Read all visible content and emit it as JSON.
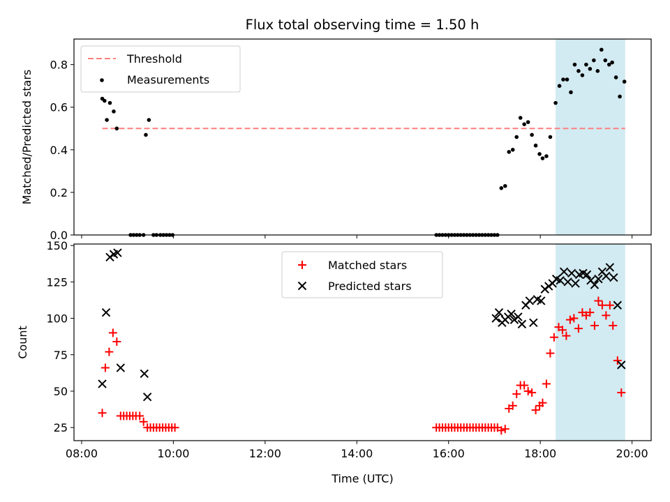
{
  "title": "Flux total observing time = 1.50 h",
  "colors": {
    "measurement": "#000000",
    "threshold": "#ff7f7f",
    "matched": "#ff0000",
    "predicted": "#000000",
    "shade": "#add8e6"
  },
  "chart_data": [
    {
      "type": "scatter",
      "ylabel": "Matched/Predicted stars",
      "ylim": [
        0,
        0.92
      ],
      "xlim": [
        "07:50",
        "20:25"
      ],
      "yticks": [
        0.0,
        0.2,
        0.4,
        0.6,
        0.8
      ],
      "ytick_labels": [
        "0.0",
        "0.2",
        "0.4",
        "0.6",
        "0.8"
      ],
      "legend": {
        "position": "upper left",
        "entries": [
          "Threshold",
          "Measurements"
        ]
      },
      "shaded_region": [
        "18:20",
        "19:51"
      ],
      "threshold": {
        "name": "Threshold",
        "y": 0.5,
        "x_range": [
          "08:27",
          "19:51"
        ]
      },
      "series": [
        {
          "name": "Measurements",
          "points": [
            [
              "08:27",
              0.64
            ],
            [
              "08:30",
              0.63
            ],
            [
              "08:33",
              0.54
            ],
            [
              "08:37",
              0.62
            ],
            [
              "08:42",
              0.58
            ],
            [
              "08:46",
              0.5
            ],
            [
              "09:04",
              0.0
            ],
            [
              "09:08",
              0.0
            ],
            [
              "09:12",
              0.0
            ],
            [
              "09:16",
              0.0
            ],
            [
              "09:21",
              0.0
            ],
            [
              "09:24",
              0.47
            ],
            [
              "09:28",
              0.54
            ],
            [
              "09:34",
              0.0
            ],
            [
              "09:38",
              0.0
            ],
            [
              "09:43",
              0.0
            ],
            [
              "09:47",
              0.0
            ],
            [
              "09:51",
              0.0
            ],
            [
              "09:55",
              0.0
            ],
            [
              "09:59",
              0.0
            ],
            [
              "15:44",
              0.0
            ],
            [
              "15:48",
              0.0
            ],
            [
              "15:52",
              0.0
            ],
            [
              "15:56",
              0.0
            ],
            [
              "16:00",
              0.0
            ],
            [
              "16:04",
              0.0
            ],
            [
              "16:08",
              0.0
            ],
            [
              "16:12",
              0.0
            ],
            [
              "16:16",
              0.0
            ],
            [
              "16:20",
              0.0
            ],
            [
              "16:24",
              0.0
            ],
            [
              "16:28",
              0.0
            ],
            [
              "16:32",
              0.0
            ],
            [
              "16:36",
              0.0
            ],
            [
              "16:40",
              0.0
            ],
            [
              "16:44",
              0.0
            ],
            [
              "16:48",
              0.0
            ],
            [
              "16:52",
              0.0
            ],
            [
              "16:56",
              0.0
            ],
            [
              "17:00",
              0.0
            ],
            [
              "17:04",
              0.0
            ],
            [
              "17:09",
              0.22
            ],
            [
              "17:14",
              0.23
            ],
            [
              "17:19",
              0.39
            ],
            [
              "17:24",
              0.4
            ],
            [
              "17:29",
              0.46
            ],
            [
              "17:34",
              0.55
            ],
            [
              "17:39",
              0.52
            ],
            [
              "17:44",
              0.53
            ],
            [
              "17:49",
              0.47
            ],
            [
              "17:54",
              0.42
            ],
            [
              "17:59",
              0.38
            ],
            [
              "18:03",
              0.36
            ],
            [
              "18:08",
              0.37
            ],
            [
              "18:13",
              0.46
            ],
            [
              "18:20",
              0.62
            ],
            [
              "18:25",
              0.7
            ],
            [
              "18:30",
              0.73
            ],
            [
              "18:35",
              0.73
            ],
            [
              "18:40",
              0.67
            ],
            [
              "18:45",
              0.8
            ],
            [
              "18:50",
              0.77
            ],
            [
              "18:55",
              0.75
            ],
            [
              "19:00",
              0.8
            ],
            [
              "19:05",
              0.78
            ],
            [
              "19:10",
              0.82
            ],
            [
              "19:15",
              0.77
            ],
            [
              "19:20",
              0.87
            ],
            [
              "19:25",
              0.82
            ],
            [
              "19:30",
              0.8
            ],
            [
              "19:34",
              0.81
            ],
            [
              "19:39",
              0.74
            ],
            [
              "19:44",
              0.65
            ],
            [
              "19:50",
              0.72
            ]
          ]
        }
      ]
    },
    {
      "type": "scatter",
      "xlabel": "Time (UTC)",
      "ylabel": "Count",
      "ylim": [
        16,
        151
      ],
      "xlim": [
        "07:50",
        "20:25"
      ],
      "xticks": [
        "08:00",
        "10:00",
        "12:00",
        "14:00",
        "16:00",
        "18:00",
        "20:00"
      ],
      "yticks": [
        25,
        50,
        75,
        100,
        125,
        150
      ],
      "ytick_labels": [
        "25",
        "50",
        "75",
        "100",
        "125",
        "150"
      ],
      "legend": {
        "position": "upper center",
        "entries": [
          "Matched stars",
          "Predicted stars"
        ]
      },
      "shaded_region": [
        "18:20",
        "19:51"
      ],
      "series": [
        {
          "name": "Matched stars",
          "marker": "+",
          "points": [
            [
              "08:27",
              35
            ],
            [
              "08:31",
              66
            ],
            [
              "08:36",
              77
            ],
            [
              "08:41",
              90
            ],
            [
              "08:46",
              84
            ],
            [
              "08:51",
              33
            ],
            [
              "08:55",
              33
            ],
            [
              "08:59",
              33
            ],
            [
              "09:03",
              33
            ],
            [
              "09:07",
              33
            ],
            [
              "09:11",
              33
            ],
            [
              "09:16",
              33
            ],
            [
              "09:21",
              29
            ],
            [
              "09:26",
              25
            ],
            [
              "09:30",
              25
            ],
            [
              "09:34",
              25
            ],
            [
              "09:38",
              25
            ],
            [
              "09:42",
              25
            ],
            [
              "09:46",
              25
            ],
            [
              "09:50",
              25
            ],
            [
              "09:54",
              25
            ],
            [
              "09:58",
              25
            ],
            [
              "10:02",
              25
            ],
            [
              "15:44",
              25
            ],
            [
              "15:48",
              25
            ],
            [
              "15:52",
              25
            ],
            [
              "15:56",
              25
            ],
            [
              "16:00",
              25
            ],
            [
              "16:04",
              25
            ],
            [
              "16:08",
              25
            ],
            [
              "16:12",
              25
            ],
            [
              "16:16",
              25
            ],
            [
              "16:20",
              25
            ],
            [
              "16:24",
              25
            ],
            [
              "16:28",
              25
            ],
            [
              "16:32",
              25
            ],
            [
              "16:36",
              25
            ],
            [
              "16:40",
              25
            ],
            [
              "16:44",
              25
            ],
            [
              "16:48",
              25
            ],
            [
              "16:52",
              25
            ],
            [
              "16:56",
              25
            ],
            [
              "17:00",
              25
            ],
            [
              "17:04",
              25
            ],
            [
              "17:09",
              23
            ],
            [
              "17:14",
              24
            ],
            [
              "17:19",
              38
            ],
            [
              "17:24",
              40
            ],
            [
              "17:29",
              48
            ],
            [
              "17:34",
              54
            ],
            [
              "17:39",
              54
            ],
            [
              "17:44",
              50
            ],
            [
              "17:49",
              49
            ],
            [
              "17:54",
              37
            ],
            [
              "17:59",
              40
            ],
            [
              "18:03",
              42
            ],
            [
              "18:08",
              55
            ],
            [
              "18:13",
              76
            ],
            [
              "18:18",
              87
            ],
            [
              "18:24",
              94
            ],
            [
              "18:29",
              92
            ],
            [
              "18:34",
              88
            ],
            [
              "18:39",
              99
            ],
            [
              "18:44",
              100
            ],
            [
              "18:50",
              93
            ],
            [
              "18:55",
              104
            ],
            [
              "19:00",
              102
            ],
            [
              "19:05",
              104
            ],
            [
              "19:11",
              95
            ],
            [
              "19:16",
              112
            ],
            [
              "19:21",
              109
            ],
            [
              "19:26",
              102
            ],
            [
              "19:31",
              109
            ],
            [
              "19:35",
              95
            ],
            [
              "19:41",
              71
            ],
            [
              "19:46",
              49
            ]
          ]
        },
        {
          "name": "Predicted stars",
          "marker": "x",
          "points": [
            [
              "08:27",
              55
            ],
            [
              "08:32",
              104
            ],
            [
              "08:37",
              142
            ],
            [
              "08:42",
              144
            ],
            [
              "08:47",
              145
            ],
            [
              "08:51",
              66
            ],
            [
              "09:22",
              62
            ],
            [
              "09:26",
              46
            ],
            [
              "17:02",
              100
            ],
            [
              "17:06",
              104
            ],
            [
              "17:10",
              97
            ],
            [
              "17:14",
              99
            ],
            [
              "17:18",
              101
            ],
            [
              "17:22",
              103
            ],
            [
              "17:26",
              99
            ],
            [
              "17:31",
              101
            ],
            [
              "17:36",
              96
            ],
            [
              "17:41",
              109
            ],
            [
              "17:46",
              112
            ],
            [
              "17:51",
              97
            ],
            [
              "17:56",
              113
            ],
            [
              "18:01",
              112
            ],
            [
              "18:06",
              120
            ],
            [
              "18:11",
              122
            ],
            [
              "18:16",
              124
            ],
            [
              "18:21",
              127
            ],
            [
              "18:26",
              126
            ],
            [
              "18:31",
              132
            ],
            [
              "18:36",
              125
            ],
            [
              "18:41",
              131
            ],
            [
              "18:46",
              124
            ],
            [
              "18:51",
              130
            ],
            [
              "18:56",
              131
            ],
            [
              "19:01",
              130
            ],
            [
              "19:06",
              126
            ],
            [
              "19:11",
              123
            ],
            [
              "19:16",
              127
            ],
            [
              "19:21",
              132
            ],
            [
              "19:26",
              129
            ],
            [
              "19:31",
              135
            ],
            [
              "19:36",
              128
            ],
            [
              "19:41",
              109
            ],
            [
              "19:46",
              68
            ]
          ]
        }
      ]
    }
  ]
}
